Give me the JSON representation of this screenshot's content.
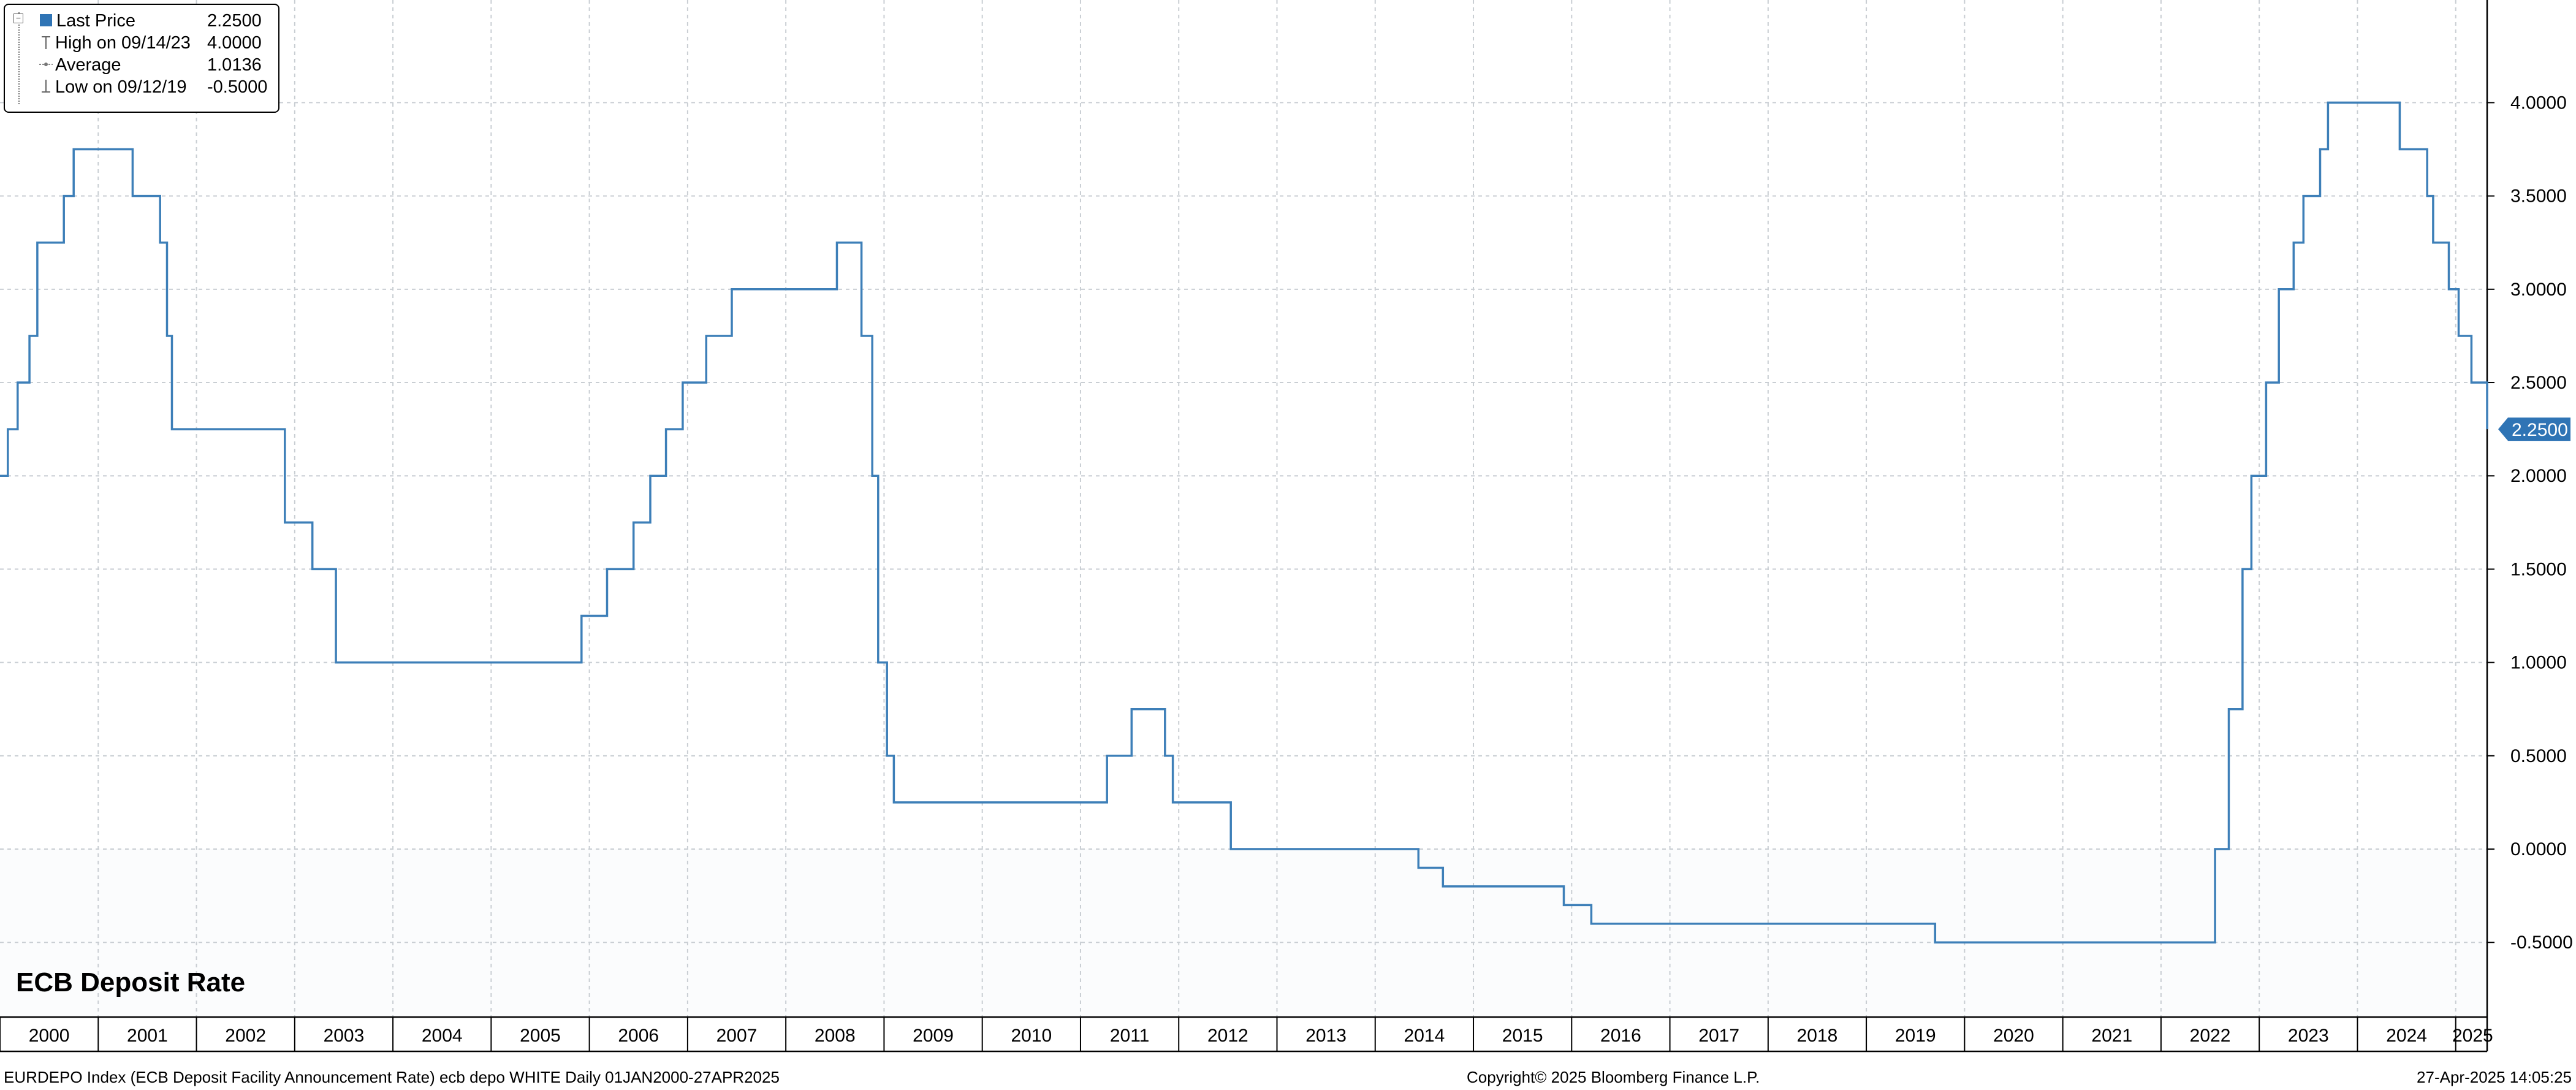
{
  "chart_data": {
    "type": "line",
    "step": true,
    "title": "ECB Deposit Rate",
    "ylim": [
      -0.9,
      4.55
    ],
    "y_ticks": [
      -0.5,
      0.0,
      0.5,
      1.0,
      1.5,
      2.0,
      2.5,
      3.0,
      3.5,
      4.0
    ],
    "y_tick_labels": [
      "-0.5000",
      "0.0000",
      "0.5000",
      "1.0000",
      "1.5000",
      "2.0000",
      "2.5000",
      "3.0000",
      "3.5000",
      "4.0000"
    ],
    "xlim": [
      2000.0,
      2025.32
    ],
    "x_tick_labels": [
      "2000",
      "2001",
      "2002",
      "2003",
      "2004",
      "2005",
      "2006",
      "2007",
      "2008",
      "2009",
      "2010",
      "2011",
      "2012",
      "2013",
      "2014",
      "2015",
      "2016",
      "2017",
      "2018",
      "2019",
      "2020",
      "2021",
      "2022",
      "2023",
      "2024",
      "2025"
    ],
    "grid": true,
    "legend_placement": "top-left",
    "series": [
      {
        "name": "Last Price",
        "color": "#3d7fb8",
        "x": [
          2000.0,
          2000.08,
          2000.18,
          2000.3,
          2000.38,
          2000.65,
          2000.75,
          2001.35,
          2001.63,
          2001.7,
          2001.75,
          2002.9,
          2003.18,
          2003.42,
          2005.92,
          2006.18,
          2006.45,
          2006.62,
          2006.78,
          2006.95,
          2007.19,
          2007.45,
          2008.52,
          2008.77,
          2008.82,
          2008.88,
          2008.94,
          2009.03,
          2009.1,
          2009.19,
          2009.35,
          2009.42,
          2011.27,
          2011.52,
          2011.86,
          2011.94,
          2012.53,
          2014.44,
          2014.69,
          2015.92,
          2016.2,
          2019.7,
          2022.55,
          2022.69,
          2022.83,
          2022.92,
          2023.07,
          2023.2,
          2023.35,
          2023.45,
          2023.62,
          2023.7,
          2024.43,
          2024.71,
          2024.77,
          2024.93,
          2025.03,
          2025.16,
          2025.32
        ],
        "values": [
          2.0,
          2.25,
          2.5,
          2.75,
          3.25,
          3.5,
          3.75,
          3.5,
          3.25,
          2.75,
          2.25,
          1.75,
          1.5,
          1.0,
          1.25,
          1.5,
          1.75,
          2.0,
          2.25,
          2.5,
          2.75,
          3.0,
          3.25,
          2.75,
          2.75,
          2.0,
          1.0,
          0.5,
          0.25,
          0.25,
          0.25,
          0.25,
          0.5,
          0.75,
          0.5,
          0.25,
          0.0,
          -0.1,
          -0.2,
          -0.3,
          -0.4,
          -0.5,
          0.0,
          0.75,
          1.5,
          2.0,
          2.5,
          3.0,
          3.25,
          3.5,
          3.75,
          4.0,
          3.75,
          3.5,
          3.25,
          3.0,
          2.75,
          2.5,
          2.25
        ]
      }
    ],
    "last_value_label": "2.2500"
  },
  "legend": {
    "rows": [
      {
        "label": "Last Price",
        "value": "2.2500"
      },
      {
        "label": "High on 09/14/23",
        "value": "4.0000"
      },
      {
        "label": "Average",
        "value": "1.0136"
      },
      {
        "label": "Low on 09/12/19",
        "value": "-0.5000"
      }
    ]
  },
  "footer": {
    "left": "EURDEPO Index (ECB Deposit Facility Announcement Rate) ecb depo WHITE  Daily 01JAN2000-27APR2025",
    "center": "Copyright© 2025 Bloomberg Finance L.P.",
    "right": "27-Apr-2025 14:05:25"
  }
}
